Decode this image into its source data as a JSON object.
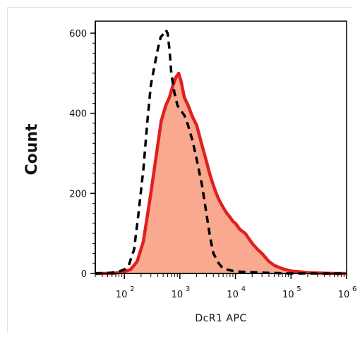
{
  "chart_data": {
    "type": "area",
    "xlabel": "DcR1 APC",
    "ylabel": "Count",
    "x_scale": "log",
    "xlim": [
      30,
      1000000
    ],
    "ylim": [
      0,
      630
    ],
    "y_ticks": [
      {
        "value": 0,
        "label": "0"
      },
      {
        "value": 200,
        "label": "200"
      },
      {
        "value": 400,
        "label": "400"
      },
      {
        "value": 600,
        "label": "600"
      }
    ],
    "x_ticks": [
      {
        "value": 100,
        "base": "10",
        "exp": "2"
      },
      {
        "value": 1000,
        "base": "10",
        "exp": "3"
      },
      {
        "value": 10000,
        "base": "10",
        "exp": "4"
      },
      {
        "value": 100000,
        "base": "10",
        "exp": "5"
      },
      {
        "value": 1000000,
        "base": "10",
        "exp": "6"
      }
    ],
    "series": [
      {
        "style": "filled",
        "fill": "#f8a98f",
        "stroke": "#e02020",
        "points": [
          [
            30,
            0
          ],
          [
            40,
            0
          ],
          [
            60,
            0
          ],
          [
            80,
            2
          ],
          [
            100,
            5
          ],
          [
            130,
            10
          ],
          [
            170,
            30
          ],
          [
            220,
            80
          ],
          [
            300,
            200
          ],
          [
            380,
            300
          ],
          [
            460,
            380
          ],
          [
            560,
            420
          ],
          [
            650,
            440
          ],
          [
            750,
            470
          ],
          [
            850,
            490
          ],
          [
            950,
            500
          ],
          [
            1050,
            480
          ],
          [
            1200,
            440
          ],
          [
            1400,
            420
          ],
          [
            1700,
            390
          ],
          [
            2000,
            370
          ],
          [
            2500,
            320
          ],
          [
            3000,
            280
          ],
          [
            3500,
            245
          ],
          [
            4000,
            220
          ],
          [
            4500,
            200
          ],
          [
            5000,
            185
          ],
          [
            6000,
            165
          ],
          [
            7000,
            150
          ],
          [
            8000,
            140
          ],
          [
            9000,
            130
          ],
          [
            10000,
            125
          ],
          [
            12000,
            110
          ],
          [
            15000,
            100
          ],
          [
            20000,
            75
          ],
          [
            25000,
            60
          ],
          [
            30000,
            50
          ],
          [
            40000,
            30
          ],
          [
            50000,
            20
          ],
          [
            70000,
            12
          ],
          [
            100000,
            6
          ],
          [
            150000,
            4
          ],
          [
            200000,
            2
          ],
          [
            300000,
            1
          ],
          [
            600000,
            0
          ],
          [
            1000000,
            0
          ]
        ]
      },
      {
        "style": "dashed",
        "stroke": "#000000",
        "points": [
          [
            30,
            0
          ],
          [
            60,
            2
          ],
          [
            80,
            5
          ],
          [
            100,
            10
          ],
          [
            120,
            20
          ],
          [
            150,
            60
          ],
          [
            180,
            150
          ],
          [
            220,
            260
          ],
          [
            260,
            380
          ],
          [
            300,
            470
          ],
          [
            350,
            520
          ],
          [
            400,
            560
          ],
          [
            450,
            590
          ],
          [
            520,
            600
          ],
          [
            560,
            608
          ],
          [
            600,
            600
          ],
          [
            650,
            560
          ],
          [
            700,
            500
          ],
          [
            800,
            450
          ],
          [
            900,
            420
          ],
          [
            1000,
            410
          ],
          [
            1200,
            395
          ],
          [
            1400,
            370
          ],
          [
            1700,
            330
          ],
          [
            2000,
            285
          ],
          [
            2500,
            220
          ],
          [
            3000,
            150
          ],
          [
            3500,
            90
          ],
          [
            4000,
            50
          ],
          [
            5000,
            25
          ],
          [
            6000,
            12
          ],
          [
            8000,
            8
          ],
          [
            10000,
            5
          ],
          [
            20000,
            3
          ],
          [
            30000,
            2
          ],
          [
            50000,
            1
          ],
          [
            100000,
            0
          ],
          [
            1000000,
            0
          ]
        ]
      }
    ]
  }
}
